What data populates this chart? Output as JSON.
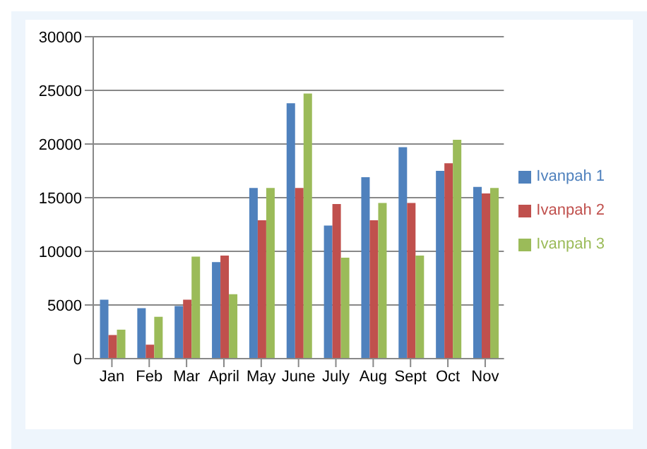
{
  "chart_data": {
    "type": "bar",
    "categories": [
      "Jan",
      "Feb",
      "Mar",
      "April",
      "May",
      "June",
      "July",
      "Aug",
      "Sept",
      "Oct",
      "Nov"
    ],
    "series": [
      {
        "name": "Ivanpah 1",
        "color": "#4f81bd",
        "values": [
          5500,
          4700,
          4900,
          9000,
          15900,
          23800,
          12400,
          16900,
          19700,
          17500,
          16000
        ]
      },
      {
        "name": "Ivanpah 2",
        "color": "#c0504d",
        "values": [
          2200,
          1300,
          5500,
          9600,
          12900,
          15900,
          14400,
          12900,
          14500,
          18200,
          15400
        ]
      },
      {
        "name": "Ivanpah 3",
        "color": "#9bbb59",
        "values": [
          2700,
          3900,
          9500,
          6000,
          15900,
          24700,
          9400,
          14500,
          9600,
          20400,
          15900
        ]
      }
    ],
    "ylim": [
      0,
      30000
    ],
    "yticks": [
      0,
      5000,
      10000,
      15000,
      20000,
      25000,
      30000
    ],
    "grid": "y",
    "legend": "right"
  }
}
